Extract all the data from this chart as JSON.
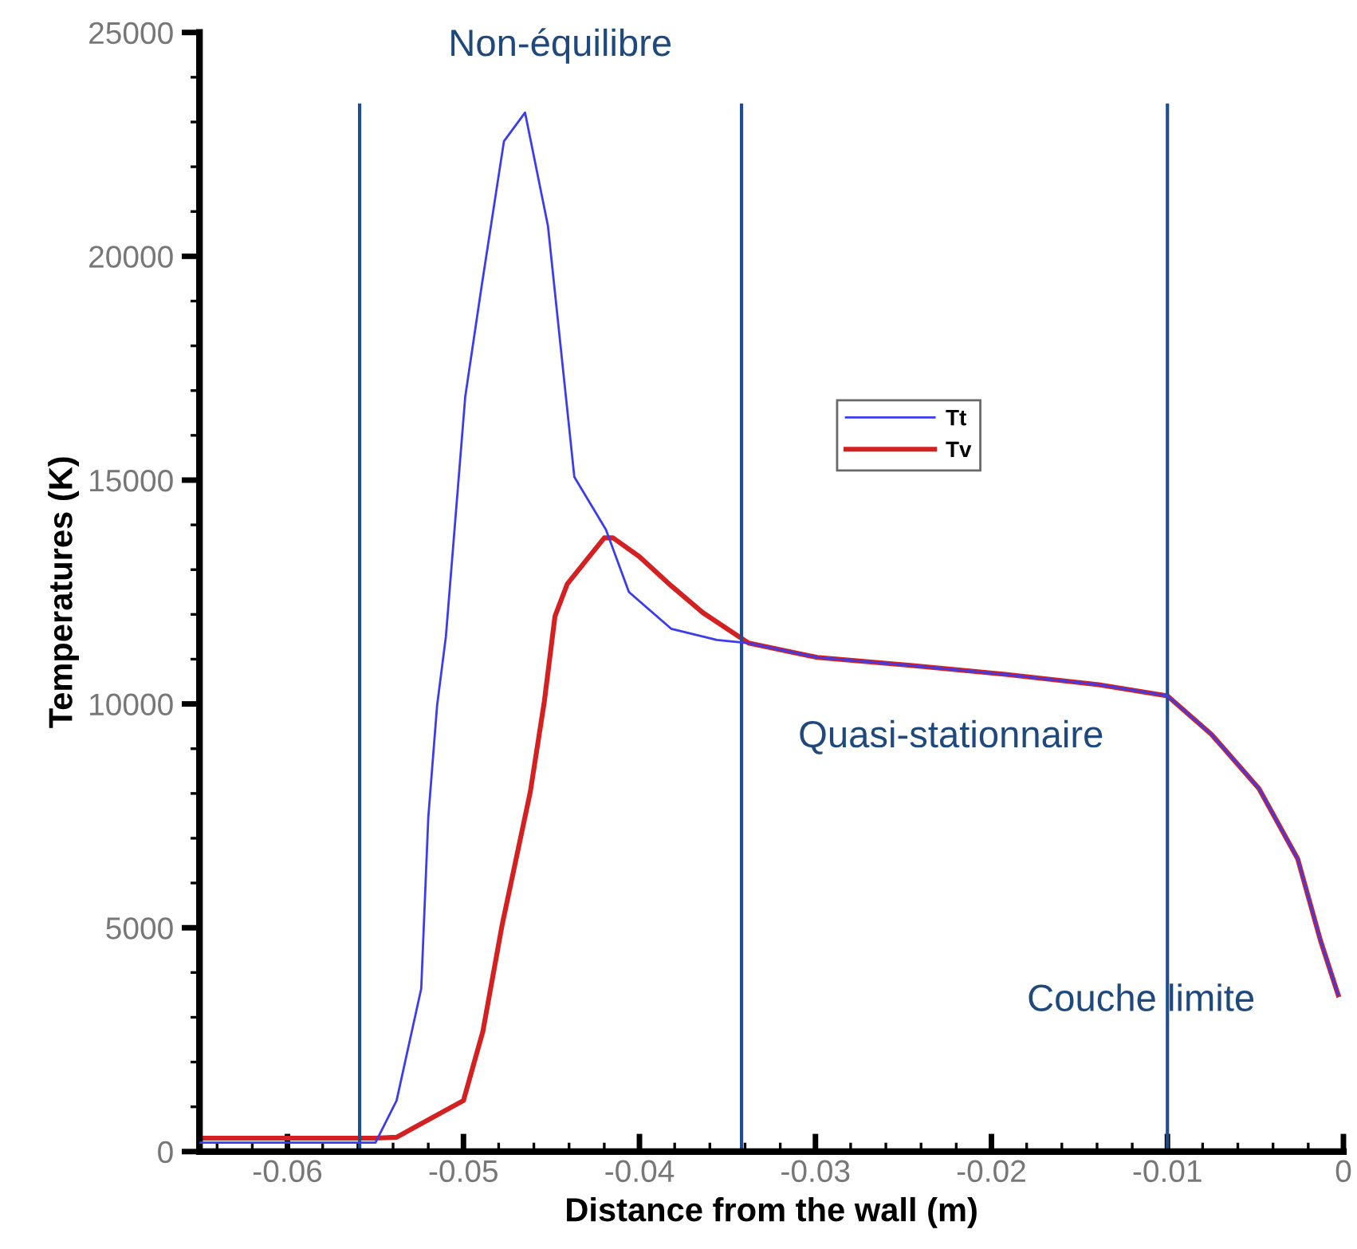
{
  "chart_data": {
    "type": "line",
    "xlabel": "Distance from the wall (m)",
    "ylabel": "Temperatures (K)",
    "xlim": [
      -0.065,
      0
    ],
    "ylim": [
      0,
      25000
    ],
    "xticks": [
      {
        "value": -0.06,
        "label": "-0.06"
      },
      {
        "value": -0.05,
        "label": "-0.05"
      },
      {
        "value": -0.04,
        "label": "-0.04"
      },
      {
        "value": -0.03,
        "label": "-0.03"
      },
      {
        "value": -0.02,
        "label": "-0.02"
      },
      {
        "value": -0.01,
        "label": "-0.01"
      },
      {
        "value": 0,
        "label": "0"
      }
    ],
    "yticks": [
      0,
      5000,
      10000,
      15000,
      20000,
      25000
    ],
    "grid": false,
    "legend": "center",
    "line_style": "solid",
    "marker": "none",
    "series": [
      {
        "name": "Tt",
        "color": "#3b3bf0",
        "x": [
          -0.065,
          -0.055,
          -0.0538,
          -0.0524,
          -0.052,
          -0.0515,
          -0.051,
          -0.0499,
          -0.049,
          -0.0477,
          -0.0465,
          -0.0452,
          -0.0437,
          -0.0419,
          -0.0406,
          -0.0382,
          -0.0356,
          -0.0338,
          -0.0299,
          -0.0246,
          -0.0192,
          -0.0139,
          -0.01,
          -0.0075,
          -0.0048,
          -0.0026,
          -0.0013,
          -0.0003
        ],
        "values": [
          200,
          200,
          1140,
          3640,
          7460,
          9960,
          11500,
          16860,
          19250,
          22570,
          23210,
          20680,
          15070,
          13890,
          12500,
          11680,
          11430,
          11360,
          11040,
          10860,
          10660,
          10430,
          10180,
          9320,
          8110,
          6540,
          4710,
          3500
        ]
      },
      {
        "name": "Tv",
        "color": "#d42020",
        "x": [
          -0.065,
          -0.055,
          -0.0538,
          -0.05,
          -0.0489,
          -0.0478,
          -0.0462,
          -0.0454,
          -0.0448,
          -0.0441,
          -0.042,
          -0.0415,
          -0.04,
          -0.0382,
          -0.0364,
          -0.0338,
          -0.0299,
          -0.0246,
          -0.0192,
          -0.0139,
          -0.01,
          -0.0075,
          -0.0048,
          -0.0026,
          -0.0013,
          -0.0003
        ],
        "values": [
          300,
          300,
          320,
          1140,
          2680,
          5070,
          8040,
          10070,
          11960,
          12680,
          13710,
          13710,
          13290,
          12640,
          12040,
          11360,
          11040,
          10860,
          10660,
          10430,
          10180,
          9320,
          8110,
          6540,
          4710,
          3500
        ]
      }
    ],
    "ref_lines": [
      {
        "axis": "x",
        "value": -0.0559,
        "color": "#1f4e8c"
      },
      {
        "axis": "x",
        "value": -0.0342,
        "color": "#1f4e8c"
      },
      {
        "axis": "x",
        "value": -0.01,
        "color": "#1f4e8c"
      }
    ],
    "annotations": [
      "Non-équilibre",
      "Quasi-stationnaire",
      "Couche limite"
    ]
  }
}
